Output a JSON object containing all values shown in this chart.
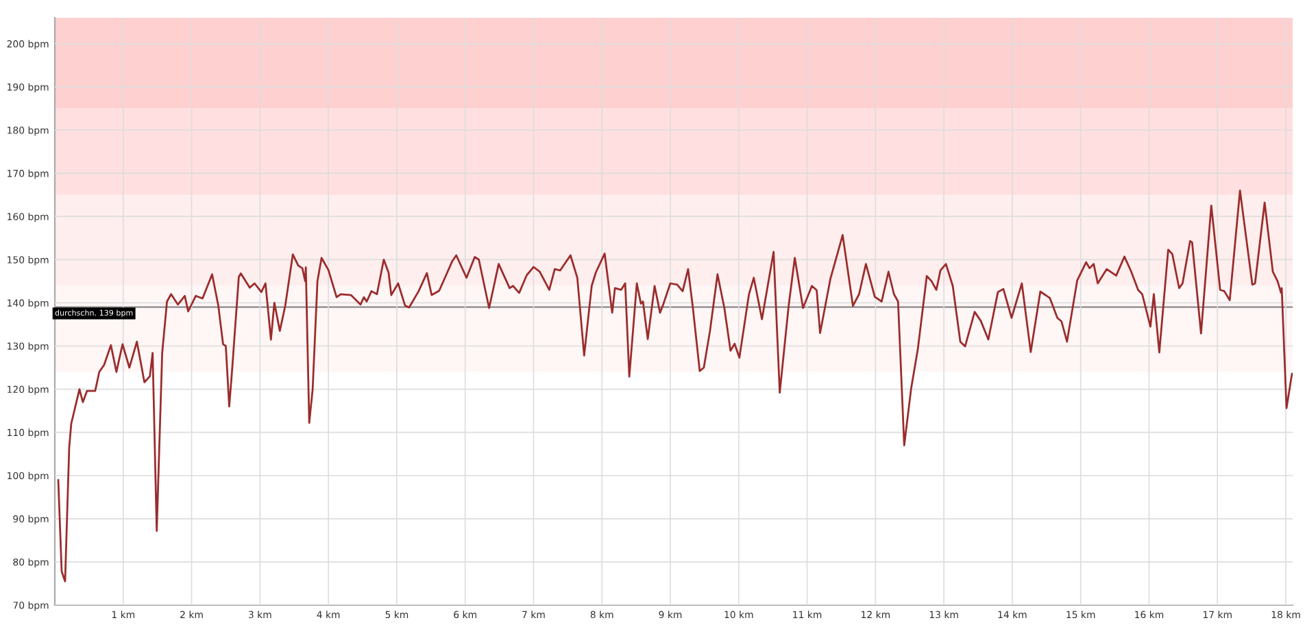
{
  "chart_data": {
    "type": "line",
    "x": [
      0.05,
      0.1,
      0.15,
      0.21,
      0.24,
      0.36,
      0.41,
      0.47,
      0.59,
      0.65,
      0.72,
      0.82,
      0.9,
      0.99,
      1.09,
      1.2,
      1.31,
      1.39,
      1.43,
      1.49,
      1.57,
      1.64,
      1.7,
      1.8,
      1.9,
      1.95,
      2.06,
      2.16,
      2.3,
      2.39,
      2.46,
      2.5,
      2.55,
      2.59,
      2.69,
      2.72,
      2.85,
      2.92,
      3.02,
      3.08,
      3.16,
      3.21,
      3.29,
      3.37,
      3.48,
      3.56,
      3.62,
      3.66,
      3.67,
      3.72,
      3.77,
      3.84,
      3.9,
      4.0,
      4.12,
      4.18,
      4.33,
      4.47,
      4.52,
      4.56,
      4.63,
      4.71,
      4.81,
      4.88,
      4.92,
      5.02,
      5.12,
      5.18,
      5.32,
      5.44,
      5.51,
      5.62,
      5.71,
      5.81,
      5.87,
      6.02,
      6.14,
      6.2,
      6.35,
      6.49,
      6.65,
      6.7,
      6.79,
      6.9,
      7.0,
      7.09,
      7.23,
      7.31,
      7.39,
      7.54,
      7.64,
      7.74,
      7.85,
      7.91,
      8.04,
      8.15,
      8.19,
      8.28,
      8.34,
      8.4,
      8.51,
      8.57,
      8.6,
      8.67,
      8.77,
      8.85,
      8.9,
      9.0,
      9.1,
      9.18,
      9.26,
      9.33,
      9.43,
      9.49,
      9.58,
      9.69,
      9.79,
      9.88,
      9.94,
      10.01,
      10.15,
      10.22,
      10.34,
      10.51,
      10.6,
      10.73,
      10.82,
      10.94,
      11.07,
      11.14,
      11.19,
      11.34,
      11.52,
      11.67,
      11.76,
      11.86,
      11.99,
      12.09,
      12.19,
      12.27,
      12.33,
      12.42,
      12.52,
      12.62,
      12.75,
      12.82,
      12.89,
      12.95,
      13.03,
      13.13,
      13.24,
      13.31,
      13.45,
      13.54,
      13.65,
      13.79,
      13.87,
      13.99,
      14.14,
      14.27,
      14.41,
      14.55,
      14.66,
      14.72,
      14.8,
      14.95,
      15.08,
      15.13,
      15.19,
      15.25,
      15.38,
      15.52,
      15.64,
      15.74,
      15.84,
      15.9,
      16.02,
      16.07,
      16.15,
      16.28,
      16.34,
      16.44,
      16.49,
      16.6,
      16.63,
      16.76,
      16.91,
      17.04,
      17.1,
      17.18,
      17.33,
      17.51,
      17.55,
      17.69,
      17.81,
      17.88,
      17.93,
      17.94,
      18.01,
      18.09
    ],
    "series": [
      {
        "color": "#9b2c2c",
        "values": [
          99,
          77.8,
          75.5,
          106.5,
          112,
          120,
          117,
          119.6,
          119.6,
          124,
          125.6,
          130.2,
          124,
          130.4,
          125,
          131,
          121.6,
          123,
          128.4,
          87.2,
          128.4,
          140.3,
          142,
          139.6,
          141.6,
          138,
          141.6,
          141,
          146.6,
          139.4,
          130.4,
          130,
          116,
          124,
          146,
          146.8,
          143.5,
          144.5,
          142.5,
          144.5,
          131.5,
          140,
          133.5,
          139.4,
          151.2,
          148.6,
          148,
          145,
          148.2,
          112.2,
          120,
          145,
          150.4,
          147.6,
          141.3,
          142,
          141.8,
          139.6,
          141.3,
          140.3,
          142.7,
          142,
          150,
          147,
          141.8,
          144.5,
          139.4,
          138.9,
          142.7,
          146.9,
          141.8,
          142.8,
          146,
          149.6,
          151,
          145.8,
          150.6,
          150,
          138.8,
          149,
          143.4,
          143.9,
          142.3,
          146.4,
          148.3,
          147.2,
          143,
          147.8,
          147.5,
          151,
          145.8,
          127.8,
          143.9,
          147,
          151.4,
          137.7,
          143.4,
          143,
          144.5,
          122.9,
          144.5,
          139.8,
          140.3,
          131.6,
          143.9,
          137.7,
          139.8,
          144.5,
          144.2,
          142.7,
          147.8,
          138.8,
          124.2,
          125,
          133.5,
          146.6,
          138.8,
          128.9,
          130.5,
          127.3,
          142,
          145.8,
          136.2,
          151.8,
          119.2,
          139.3,
          150.4,
          138.8,
          143.9,
          142.9,
          133,
          145.5,
          155.7,
          139.3,
          142,
          149,
          141.4,
          140.3,
          147.2,
          142,
          140.3,
          107,
          120,
          129.4,
          146.2,
          145,
          143,
          147.5,
          149,
          143.9,
          131,
          129.9,
          137.9,
          135.8,
          131.5,
          142.5,
          143.2,
          136.5,
          144.5,
          128.6,
          142.6,
          141.1,
          136.5,
          135.7,
          131,
          145.2,
          149.4,
          148,
          149,
          144.5,
          147.8,
          146.3,
          150.7,
          147.2,
          143,
          142,
          134.5,
          142,
          128.5,
          152.3,
          151.3,
          143.4,
          144.5,
          154.3,
          154,
          132.9,
          162.5,
          143,
          142.7,
          140.6,
          166,
          144.2,
          144.5,
          163.2,
          147.2,
          145,
          142.3,
          143.4,
          115.6,
          123.6
        ]
      }
    ],
    "xlim": [
      0,
      18.1
    ],
    "ylim": [
      70,
      206
    ],
    "xticks": [
      {
        "value": 1,
        "label": "1 km"
      },
      {
        "value": 2,
        "label": "2 km"
      },
      {
        "value": 3,
        "label": "3 km"
      },
      {
        "value": 4,
        "label": "4 km"
      },
      {
        "value": 5,
        "label": "5 km"
      },
      {
        "value": 6,
        "label": "6 km"
      },
      {
        "value": 7,
        "label": "7 km"
      },
      {
        "value": 8,
        "label": "8 km"
      },
      {
        "value": 9,
        "label": "9 km"
      },
      {
        "value": 10,
        "label": "10 km"
      },
      {
        "value": 11,
        "label": "11 km"
      },
      {
        "value": 12,
        "label": "12 km"
      },
      {
        "value": 13,
        "label": "13 km"
      },
      {
        "value": 14,
        "label": "14 km"
      },
      {
        "value": 15,
        "label": "15 km"
      },
      {
        "value": 16,
        "label": "16 km"
      },
      {
        "value": 17,
        "label": "17 km"
      },
      {
        "value": 18,
        "label": "18 km"
      }
    ],
    "yticks": [
      {
        "value": 70,
        "label": "70 bpm"
      },
      {
        "value": 80,
        "label": "80 bpm"
      },
      {
        "value": 90,
        "label": "90 bpm"
      },
      {
        "value": 100,
        "label": "100 bpm"
      },
      {
        "value": 110,
        "label": "110 bpm"
      },
      {
        "value": 120,
        "label": "120 bpm"
      },
      {
        "value": 130,
        "label": "130 bpm"
      },
      {
        "value": 140,
        "label": "140 bpm"
      },
      {
        "value": 150,
        "label": "150 bpm"
      },
      {
        "value": 160,
        "label": "160 bpm"
      },
      {
        "value": 170,
        "label": "170 bpm"
      },
      {
        "value": 180,
        "label": "180 bpm"
      },
      {
        "value": 190,
        "label": "190 bpm"
      },
      {
        "value": 200,
        "label": "200 bpm"
      }
    ],
    "grid": true,
    "marker": "none",
    "line_style": "solid",
    "ref_lines": [
      {
        "axis": "y",
        "value": 139,
        "label": "durchschn. 139 bpm",
        "color": "#888888"
      }
    ],
    "bands": [
      {
        "axis": "y",
        "from": 124,
        "to": 144,
        "color": "#fff6f6"
      },
      {
        "axis": "y",
        "from": 144,
        "to": 165,
        "color": "#ffeeee"
      },
      {
        "axis": "y",
        "from": 165,
        "to": 185,
        "color": "#ffdfe0"
      },
      {
        "axis": "y",
        "from": 185,
        "to": 206,
        "color": "#ffd0d0"
      }
    ]
  }
}
